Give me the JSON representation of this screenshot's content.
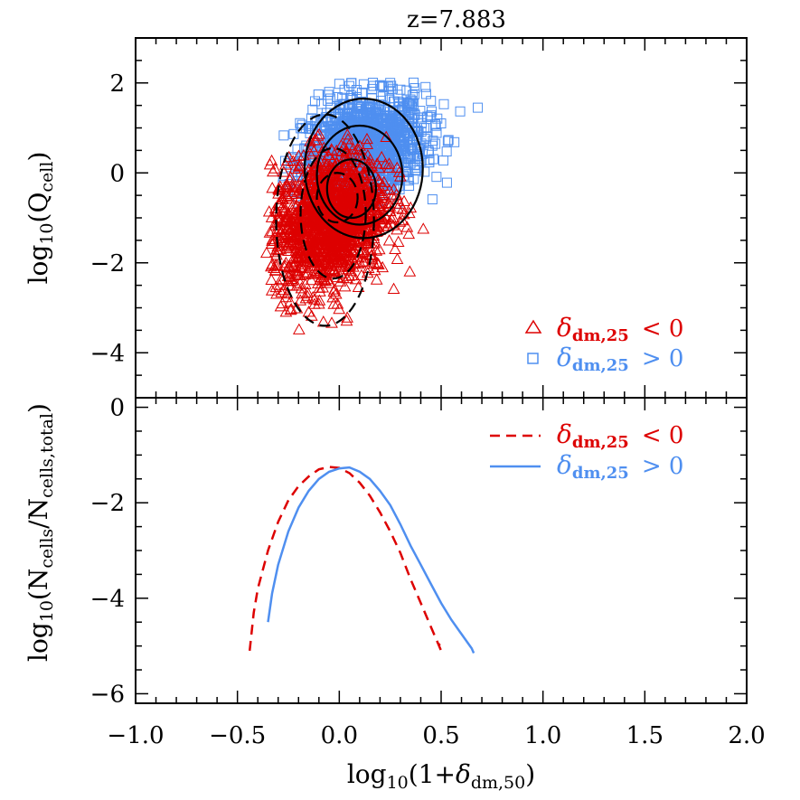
{
  "title": "z=7.883",
  "colors": {
    "under": "#dd0000",
    "over": "#4f8ff0",
    "contour": "#000000",
    "axes": "#000000"
  },
  "chart_data": [
    {
      "type": "scatter",
      "title": "z=7.883",
      "xlim": [
        -1.0,
        2.0
      ],
      "ylim": [
        -5.0,
        3.0
      ],
      "xticks": [
        -1.0,
        -0.5,
        0.0,
        0.5,
        1.0,
        1.5,
        2.0
      ],
      "yticks": [
        -4,
        -2,
        0,
        2
      ],
      "ytick_labels": [
        "−4",
        "−2",
        "0",
        "2"
      ],
      "ylabel": {
        "main": "log",
        "sub1": "10",
        "mid": "(Q",
        "sub2": "cell",
        "end": ")"
      },
      "grid": false,
      "legend_position": "bottom-right",
      "series": [
        {
          "name": {
            "delta": "δ",
            "sub": "dm,25",
            "rel": "< 0"
          },
          "marker": "triangle",
          "color": "#dd0000",
          "extent": {
            "x_center": -0.05,
            "x_range": [
              -0.36,
              0.45
            ],
            "y_range": [
              -3.5,
              1.0
            ]
          }
        },
        {
          "name": {
            "delta": "δ",
            "sub": "dm,25",
            "rel": "> 0"
          },
          "marker": "square",
          "color": "#4f8ff0",
          "extent": {
            "x_center": 0.12,
            "x_range": [
              -0.3,
              0.7
            ],
            "y_range": [
              -2.0,
              2.05
            ]
          }
        }
      ],
      "contours": [
        {
          "style": "solid",
          "levels": [
            {
              "cx": 0.12,
              "cy": 0.1,
              "rx": 0.29,
              "ry": 1.55
            },
            {
              "cx": 0.1,
              "cy": -0.05,
              "rx": 0.21,
              "ry": 1.1
            },
            {
              "cx": 0.06,
              "cy": -0.35,
              "rx": 0.12,
              "ry": 0.65
            }
          ]
        },
        {
          "style": "dashed",
          "levels": [
            {
              "cx": -0.07,
              "cy": -1.05,
              "rx": 0.24,
              "ry": 2.35
            },
            {
              "cx": -0.03,
              "cy": -0.9,
              "rx": 0.16,
              "ry": 1.45
            },
            {
              "cx": -0.01,
              "cy": -0.55,
              "rx": 0.1,
              "ry": 0.55
            }
          ]
        }
      ]
    },
    {
      "type": "line",
      "xlim": [
        -1.0,
        2.0
      ],
      "ylim": [
        -6.2,
        0.2
      ],
      "xticks": [
        -1.0,
        -0.5,
        0.0,
        0.5,
        1.0,
        1.5,
        2.0
      ],
      "xtick_labels": [
        "−1.0",
        "−0.5",
        "0.0",
        "0.5",
        "1.0",
        "1.5",
        "2.0"
      ],
      "yticks": [
        -6,
        -4,
        -2,
        0
      ],
      "ytick_labels": [
        "−6",
        "−4",
        "−2",
        "0"
      ],
      "xlabel": {
        "main": "log",
        "sub1": "10",
        "mid": "(1+",
        "delta": "δ",
        "sub2": "dm,50",
        "end": ")"
      },
      "ylabel": {
        "main": "log",
        "sub1": "10",
        "mid": "(N",
        "sub2": "cells",
        "mid2": "/N",
        "sub3": "cells,total",
        "end": ")"
      },
      "grid": false,
      "legend_position": "top-right",
      "series": [
        {
          "name": {
            "delta": "δ",
            "sub": "dm,25",
            "rel": "< 0"
          },
          "style": "dashed",
          "color": "#dd0000",
          "x": [
            -0.44,
            -0.42,
            -0.4,
            -0.35,
            -0.3,
            -0.25,
            -0.2,
            -0.15,
            -0.1,
            -0.05,
            0.0,
            0.05,
            0.1,
            0.15,
            0.2,
            0.25,
            0.3,
            0.35,
            0.4,
            0.45,
            0.48,
            0.5,
            0.49
          ],
          "y": [
            -5.1,
            -4.3,
            -3.8,
            -3.0,
            -2.4,
            -1.95,
            -1.65,
            -1.45,
            -1.3,
            -1.25,
            -1.27,
            -1.38,
            -1.58,
            -1.85,
            -2.2,
            -2.6,
            -3.05,
            -3.6,
            -4.1,
            -4.6,
            -4.9,
            -5.1,
            -4.95
          ]
        },
        {
          "name": {
            "delta": "δ",
            "sub": "dm,25",
            "rel": "> 0"
          },
          "style": "solid",
          "color": "#4f8ff0",
          "x": [
            -0.35,
            -0.33,
            -0.3,
            -0.25,
            -0.2,
            -0.15,
            -0.1,
            -0.05,
            0.0,
            0.05,
            0.1,
            0.15,
            0.2,
            0.25,
            0.3,
            0.35,
            0.4,
            0.45,
            0.5,
            0.55,
            0.6,
            0.65,
            0.66
          ],
          "y": [
            -4.5,
            -3.9,
            -3.3,
            -2.6,
            -2.1,
            -1.75,
            -1.5,
            -1.35,
            -1.28,
            -1.26,
            -1.35,
            -1.5,
            -1.75,
            -2.05,
            -2.45,
            -2.9,
            -3.3,
            -3.7,
            -4.1,
            -4.45,
            -4.75,
            -5.05,
            -5.15
          ]
        }
      ]
    }
  ]
}
